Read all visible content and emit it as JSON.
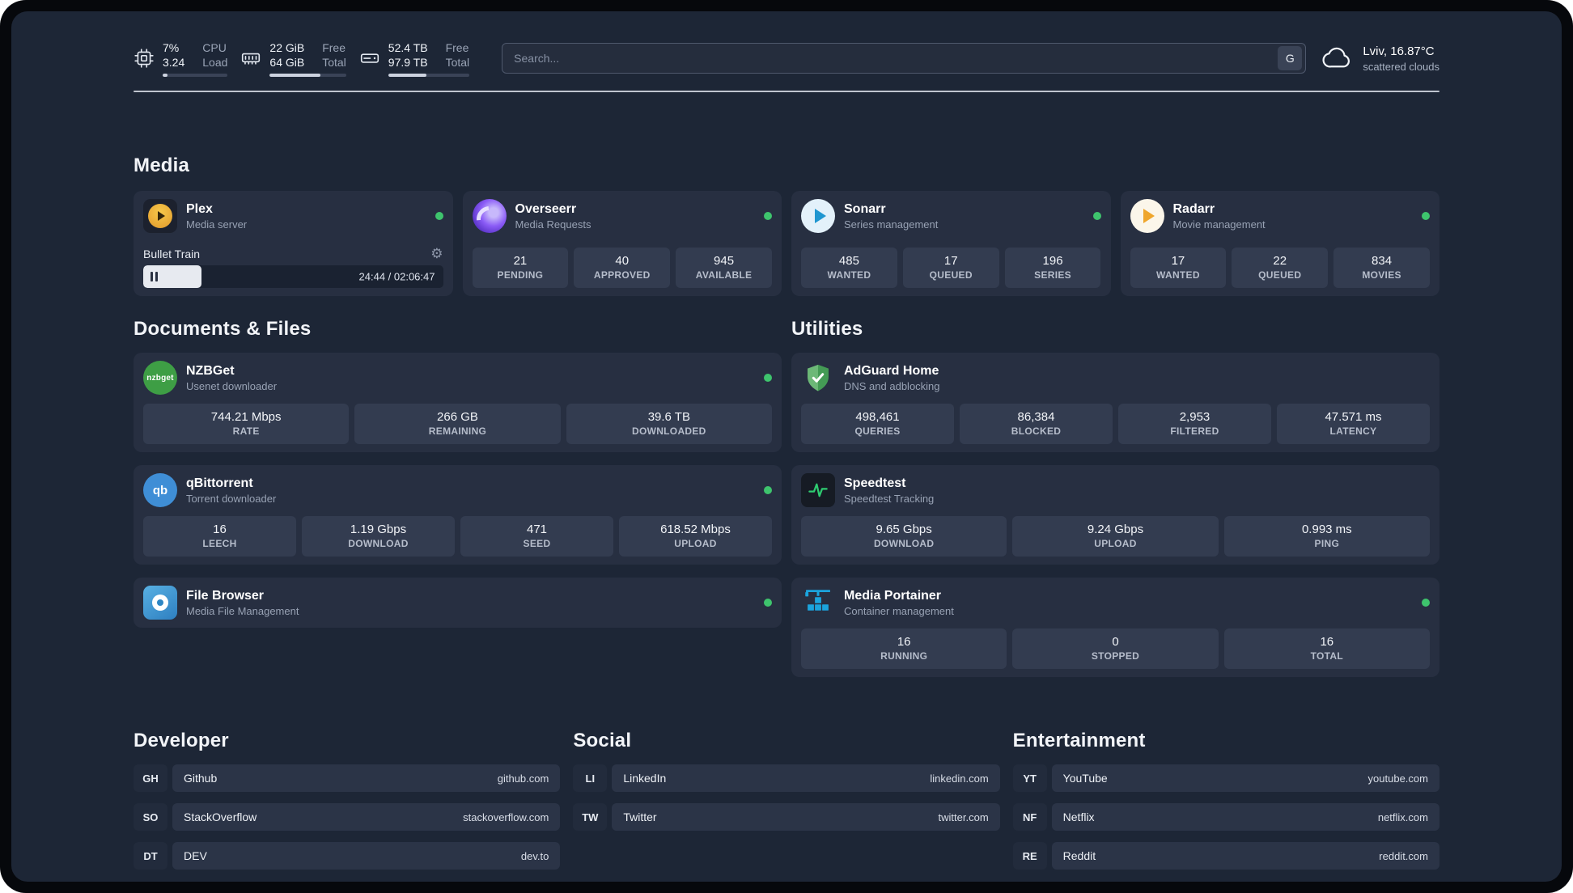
{
  "colors": {
    "status_green": "#3ec46d",
    "background": "#1d2636",
    "card": "#272f41"
  },
  "topbar": {
    "cpu": {
      "percent": "7%",
      "load": "3.24",
      "labels": [
        "CPU",
        "Load"
      ],
      "bar_percent": 7
    },
    "ram": {
      "free": "22 GiB",
      "total": "64 GiB",
      "labels": [
        "Free",
        "Total"
      ],
      "bar_percent": 66
    },
    "disk": {
      "free": "52.4 TB",
      "total": "97.9 TB",
      "labels": [
        "Free",
        "Total"
      ],
      "bar_percent": 47
    },
    "search": {
      "placeholder": "Search...",
      "button": "G"
    },
    "weather": {
      "location": "Lviv, 16.87°C",
      "condition": "scattered clouds"
    }
  },
  "sections": {
    "media": "Media",
    "documents": "Documents & Files",
    "utilities": "Utilities",
    "developer": "Developer",
    "social": "Social",
    "entertainment": "Entertainment"
  },
  "apps": {
    "plex": {
      "name": "Plex",
      "desc": "Media server",
      "now_playing": "Bullet Train",
      "time": "24:44 / 02:06:47",
      "progress_percent": 19.5
    },
    "overseerr": {
      "name": "Overseerr",
      "desc": "Media Requests",
      "stats": [
        {
          "value": "21",
          "label": "PENDING"
        },
        {
          "value": "40",
          "label": "APPROVED"
        },
        {
          "value": "945",
          "label": "AVAILABLE"
        }
      ]
    },
    "sonarr": {
      "name": "Sonarr",
      "desc": "Series management",
      "stats": [
        {
          "value": "485",
          "label": "WANTED"
        },
        {
          "value": "17",
          "label": "QUEUED"
        },
        {
          "value": "196",
          "label": "SERIES"
        }
      ]
    },
    "radarr": {
      "name": "Radarr",
      "desc": "Movie management",
      "stats": [
        {
          "value": "17",
          "label": "WANTED"
        },
        {
          "value": "22",
          "label": "QUEUED"
        },
        {
          "value": "834",
          "label": "MOVIES"
        }
      ]
    },
    "nzbget": {
      "name": "NZBGet",
      "desc": "Usenet downloader",
      "icon_text": "nzbget",
      "stats": [
        {
          "value": "744.21 Mbps",
          "label": "RATE"
        },
        {
          "value": "266 GB",
          "label": "REMAINING"
        },
        {
          "value": "39.6 TB",
          "label": "DOWNLOADED"
        }
      ]
    },
    "qbittorrent": {
      "name": "qBittorrent",
      "desc": "Torrent downloader",
      "icon_text": "qb",
      "stats": [
        {
          "value": "16",
          "label": "LEECH"
        },
        {
          "value": "1.19 Gbps",
          "label": "DOWNLOAD"
        },
        {
          "value": "471",
          "label": "SEED"
        },
        {
          "value": "618.52 Mbps",
          "label": "UPLOAD"
        }
      ]
    },
    "filebrowser": {
      "name": "File Browser",
      "desc": "Media File Management"
    },
    "adguard": {
      "name": "AdGuard Home",
      "desc": "DNS and adblocking",
      "stats": [
        {
          "value": "498,461",
          "label": "QUERIES"
        },
        {
          "value": "86,384",
          "label": "BLOCKED"
        },
        {
          "value": "2,953",
          "label": "FILTERED"
        },
        {
          "value": "47.571 ms",
          "label": "LATENCY"
        }
      ]
    },
    "speedtest": {
      "name": "Speedtest",
      "desc": "Speedtest Tracking",
      "stats": [
        {
          "value": "9.65 Gbps",
          "label": "DOWNLOAD"
        },
        {
          "value": "9.24 Gbps",
          "label": "UPLOAD"
        },
        {
          "value": "0.993 ms",
          "label": "PING"
        }
      ]
    },
    "portainer": {
      "name": "Media Portainer",
      "desc": "Container management",
      "stats": [
        {
          "value": "16",
          "label": "RUNNING"
        },
        {
          "value": "0",
          "label": "STOPPED"
        },
        {
          "value": "16",
          "label": "TOTAL"
        }
      ]
    }
  },
  "bookmarks": {
    "developer": [
      {
        "abbr": "GH",
        "name": "Github",
        "url": "github.com"
      },
      {
        "abbr": "SO",
        "name": "StackOverflow",
        "url": "stackoverflow.com"
      },
      {
        "abbr": "DT",
        "name": "DEV",
        "url": "dev.to"
      }
    ],
    "social": [
      {
        "abbr": "LI",
        "name": "LinkedIn",
        "url": "linkedin.com"
      },
      {
        "abbr": "TW",
        "name": "Twitter",
        "url": "twitter.com"
      }
    ],
    "entertainment": [
      {
        "abbr": "YT",
        "name": "YouTube",
        "url": "youtube.com"
      },
      {
        "abbr": "NF",
        "name": "Netflix",
        "url": "netflix.com"
      },
      {
        "abbr": "RE",
        "name": "Reddit",
        "url": "reddit.com"
      }
    ]
  }
}
